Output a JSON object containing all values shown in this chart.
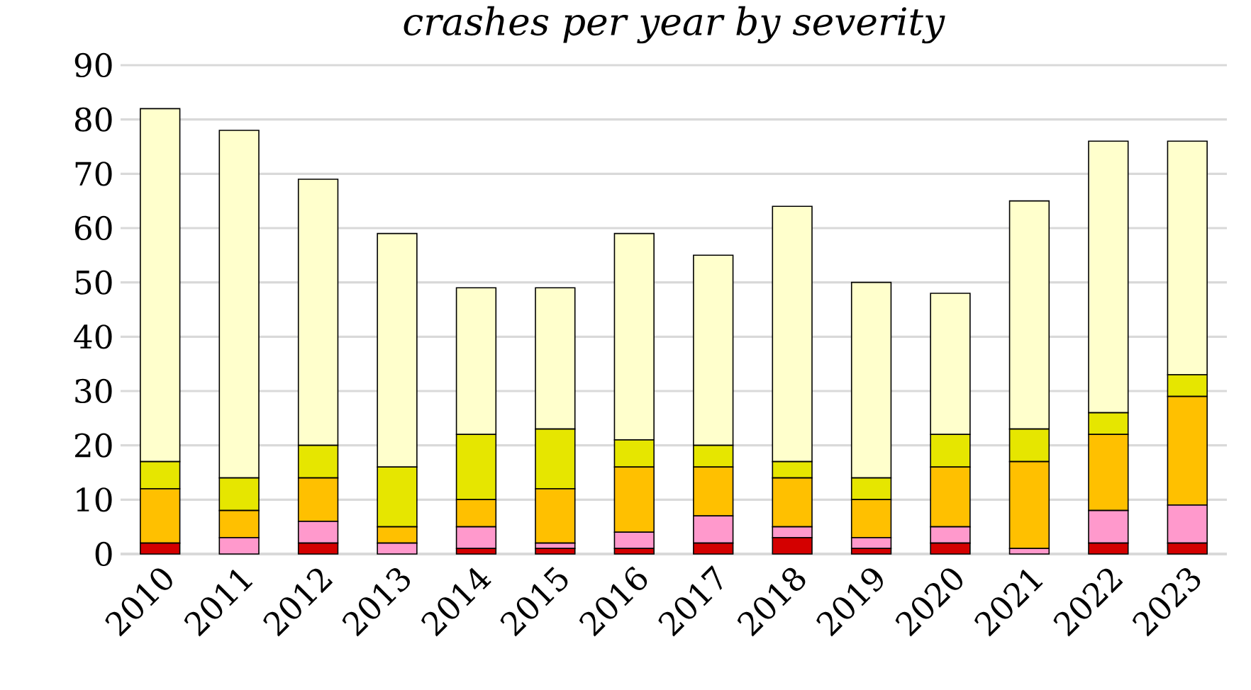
{
  "chart_data": {
    "type": "bar",
    "title": "*crashes per year by severity*",
    "stacked": true,
    "grid": "y",
    "categories": [
      "2010",
      "2011",
      "2012",
      "2013",
      "2014",
      "2015",
      "2016",
      "2017",
      "2018",
      "2019",
      "2020",
      "2021",
      "2022",
      "2023"
    ],
    "series": [
      {
        "color": "#d40000",
        "values": [
          2,
          0,
          2,
          0,
          1,
          1,
          1,
          2,
          3,
          1,
          2,
          0,
          2,
          2
        ]
      },
      {
        "color": "#ff99cc",
        "values": [
          0,
          3,
          4,
          2,
          4,
          1,
          3,
          5,
          2,
          2,
          3,
          1,
          6,
          7
        ]
      },
      {
        "color": "#ffc000",
        "values": [
          10,
          5,
          8,
          3,
          5,
          10,
          12,
          9,
          9,
          7,
          11,
          16,
          14,
          20
        ]
      },
      {
        "color": "#e6e600",
        "values": [
          5,
          6,
          6,
          11,
          12,
          11,
          5,
          4,
          3,
          4,
          6,
          6,
          4,
          4
        ]
      },
      {
        "color": "#ffffcc",
        "values": [
          65,
          64,
          49,
          43,
          27,
          26,
          38,
          35,
          47,
          36,
          26,
          42,
          50,
          43
        ]
      }
    ],
    "ylim": [
      0,
      90
    ],
    "yticks": [
      0,
      10,
      20,
      30,
      40,
      50,
      60,
      70,
      80,
      90
    ]
  }
}
